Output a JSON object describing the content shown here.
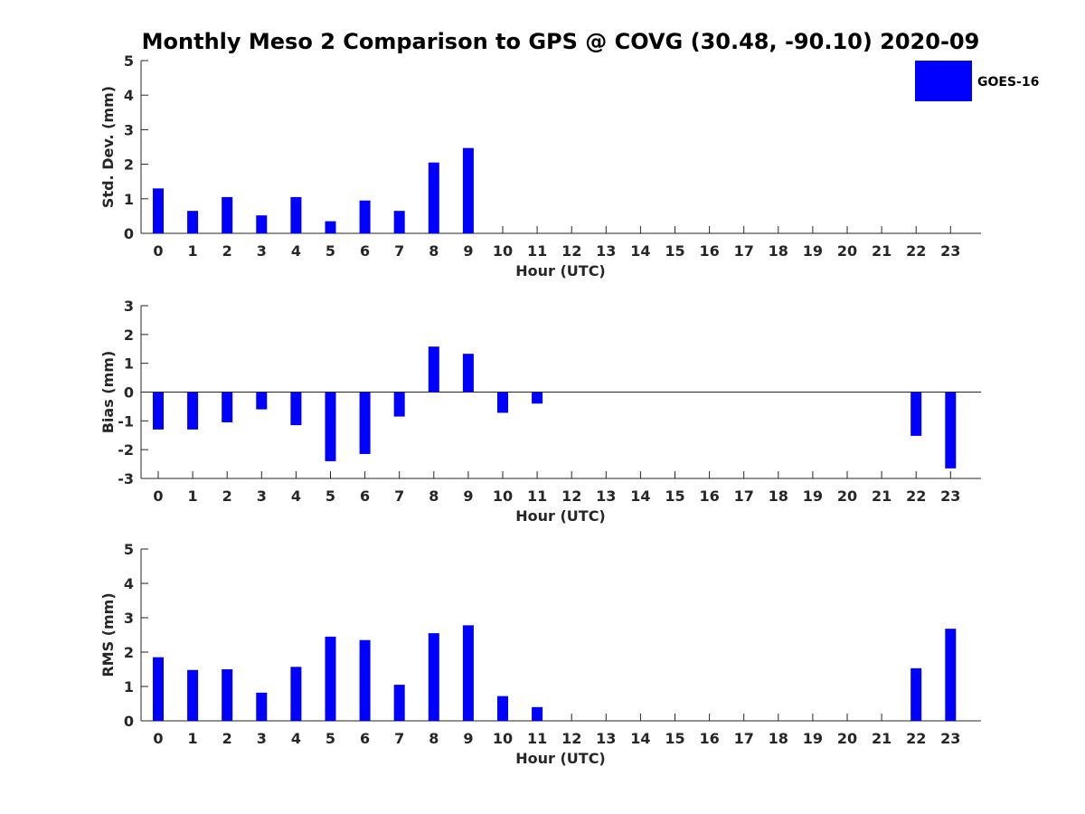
{
  "title": "Monthly Meso 2 Comparison to GPS @ COVG (30.48, -90.10) 2020-09",
  "legend": {
    "label": "GOES-16",
    "color": "#0000ff"
  },
  "chart_data": [
    {
      "type": "bar",
      "xlabel": "Hour (UTC)",
      "ylabel": "Std. Dev. (mm)",
      "ylim": [
        0,
        5
      ],
      "yticks": [
        "0",
        "1",
        "2",
        "3",
        "4",
        "5"
      ],
      "categories": [
        "0",
        "1",
        "2",
        "3",
        "4",
        "5",
        "6",
        "7",
        "8",
        "9",
        "10",
        "11",
        "12",
        "13",
        "14",
        "15",
        "16",
        "17",
        "18",
        "19",
        "20",
        "21",
        "22",
        "23"
      ],
      "series": [
        {
          "name": "GOES-16",
          "values": [
            1.3,
            0.65,
            1.05,
            0.52,
            1.05,
            0.35,
            0.95,
            0.65,
            2.05,
            2.47,
            null,
            null,
            null,
            null,
            null,
            null,
            null,
            null,
            null,
            null,
            null,
            null,
            null,
            null
          ]
        }
      ]
    },
    {
      "type": "bar",
      "xlabel": "Hour (UTC)",
      "ylabel": "Bias (mm)",
      "ylim": [
        -3,
        3
      ],
      "yticks": [
        "-3",
        "-2",
        "-1",
        "0",
        "1",
        "2",
        "3"
      ],
      "categories": [
        "0",
        "1",
        "2",
        "3",
        "4",
        "5",
        "6",
        "7",
        "8",
        "9",
        "10",
        "11",
        "12",
        "13",
        "14",
        "15",
        "16",
        "17",
        "18",
        "19",
        "20",
        "21",
        "22",
        "23"
      ],
      "series": [
        {
          "name": "GOES-16",
          "values": [
            -1.3,
            -1.3,
            -1.05,
            -0.6,
            -1.15,
            -2.4,
            -2.15,
            -0.85,
            1.58,
            1.33,
            -0.72,
            -0.4,
            null,
            null,
            null,
            null,
            null,
            null,
            null,
            null,
            null,
            null,
            -1.52,
            -2.65
          ]
        }
      ]
    },
    {
      "type": "bar",
      "xlabel": "Hour (UTC)",
      "ylabel": "RMS (mm)",
      "ylim": [
        0,
        5
      ],
      "yticks": [
        "0",
        "1",
        "2",
        "3",
        "4",
        "5"
      ],
      "categories": [
        "0",
        "1",
        "2",
        "3",
        "4",
        "5",
        "6",
        "7",
        "8",
        "9",
        "10",
        "11",
        "12",
        "13",
        "14",
        "15",
        "16",
        "17",
        "18",
        "19",
        "20",
        "21",
        "22",
        "23"
      ],
      "series": [
        {
          "name": "GOES-16",
          "values": [
            1.85,
            1.48,
            1.5,
            0.82,
            1.57,
            2.45,
            2.35,
            1.05,
            2.55,
            2.78,
            0.72,
            0.4,
            null,
            null,
            null,
            null,
            null,
            null,
            null,
            null,
            null,
            null,
            1.53,
            2.68
          ]
        }
      ]
    }
  ]
}
